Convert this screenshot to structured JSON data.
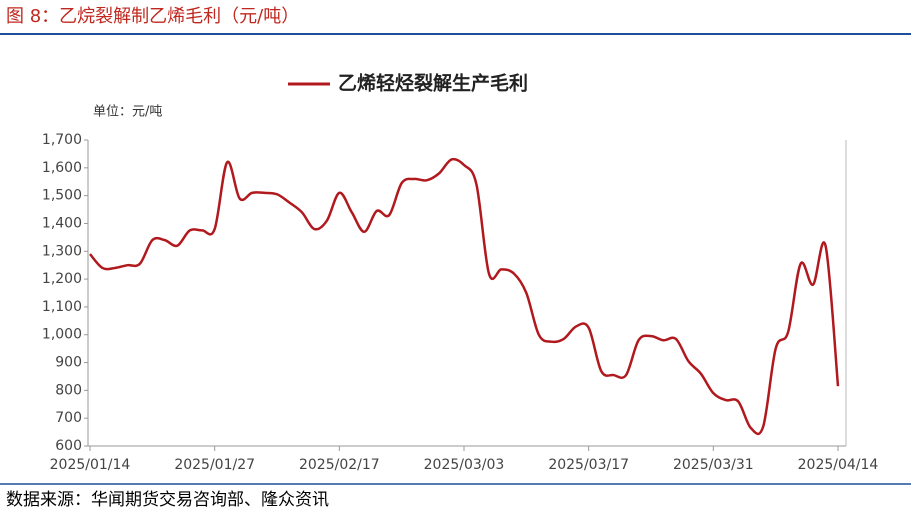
{
  "header": {
    "title": "图 8：乙烷裂解制乙烯毛利（元/吨）"
  },
  "chart_data": {
    "type": "line",
    "unit_label": "单位：元/吨",
    "categories": [
      "2025/01/14",
      null,
      null,
      null,
      null,
      null,
      null,
      null,
      null,
      null,
      "2025/01/27",
      null,
      null,
      null,
      null,
      null,
      null,
      null,
      null,
      null,
      "2025/02/17",
      null,
      null,
      null,
      null,
      null,
      null,
      null,
      null,
      null,
      "2025/03/03",
      null,
      null,
      null,
      null,
      null,
      null,
      null,
      null,
      null,
      "2025/03/17",
      null,
      null,
      null,
      null,
      null,
      null,
      null,
      null,
      null,
      "2025/03/31",
      null,
      null,
      null,
      null,
      null,
      null,
      null,
      null,
      null,
      "2025/04/14"
    ],
    "series": [
      {
        "name": "乙烯轻烃裂解生产毛利",
        "color": "#b0191e",
        "values": [
          1290,
          1240,
          1240,
          1250,
          1255,
          1340,
          1340,
          1320,
          1375,
          1375,
          1380,
          1620,
          1490,
          1510,
          1510,
          1505,
          1475,
          1440,
          1380,
          1410,
          1510,
          1440,
          1370,
          1445,
          1430,
          1545,
          1560,
          1555,
          1580,
          1630,
          1610,
          1540,
          1220,
          1235,
          1220,
          1150,
          1000,
          975,
          985,
          1030,
          1025,
          870,
          855,
          855,
          980,
          995,
          980,
          985,
          905,
          860,
          790,
          765,
          760,
          665,
          670,
          950,
          1010,
          1255,
          1180,
          1320,
          815
        ]
      }
    ],
    "ylim": [
      600,
      1700
    ],
    "yticks": [
      600,
      700,
      800,
      900,
      {
        "value": 1000,
        "label": "1,000"
      },
      {
        "value": 1100,
        "label": "1,100"
      },
      {
        "value": 1200,
        "label": "1,200"
      },
      {
        "value": 1300,
        "label": "1,300"
      },
      {
        "value": 1400,
        "label": "1,400"
      },
      {
        "value": 1500,
        "label": "1,500"
      },
      {
        "value": 1600,
        "label": "1,600"
      },
      {
        "value": 1700,
        "label": "1,700"
      }
    ],
    "legend": "top"
  },
  "footer": {
    "source": "数据来源：华闻期货交易咨询部、隆众资讯"
  }
}
